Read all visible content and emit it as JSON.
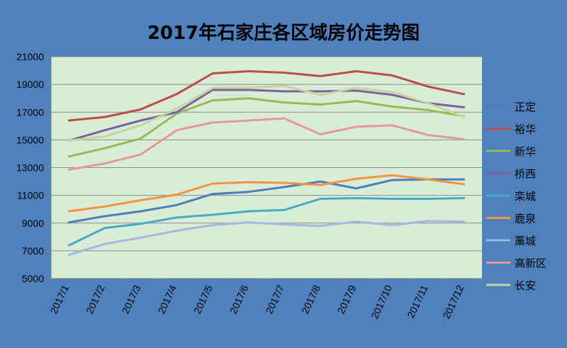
{
  "chart_data": {
    "type": "line",
    "title": "2017年石家庄各区域房价走势图",
    "xlabel": "",
    "ylabel": "",
    "categories": [
      "2017/1",
      "2017/2",
      "2017/3",
      "2017/4",
      "2017/5",
      "2017/6",
      "2017/7",
      "2017/8",
      "2017/9",
      "2017/10",
      "2017/11",
      "2017/12"
    ],
    "ylim": [
      5000,
      21000
    ],
    "yticks": [
      5000,
      7000,
      9000,
      11000,
      13000,
      15000,
      17000,
      19000,
      21000
    ],
    "grid": true,
    "legend_position": "right",
    "series": [
      {
        "name": "正定",
        "color": "#4a7ebb",
        "values": [
          9050,
          9500,
          9850,
          10300,
          11100,
          11250,
          11600,
          12000,
          11500,
          12100,
          12150,
          12150
        ]
      },
      {
        "name": "裕华",
        "color": "#be4b48",
        "values": [
          16400,
          16650,
          17200,
          18300,
          19800,
          19950,
          19850,
          19600,
          19950,
          19650,
          18850,
          18300
        ]
      },
      {
        "name": "新华",
        "color": "#98b954",
        "values": [
          13800,
          14400,
          15100,
          16900,
          17850,
          18000,
          17700,
          17550,
          17800,
          17400,
          17150,
          16700
        ]
      },
      {
        "name": "桥西",
        "color": "#7d60a0",
        "values": [
          14950,
          15700,
          16400,
          17000,
          18600,
          18600,
          18500,
          18500,
          18550,
          18250,
          17650,
          17350
        ]
      },
      {
        "name": "栾城",
        "color": "#46aac5",
        "values": [
          7400,
          8650,
          8950,
          9400,
          9600,
          9850,
          9950,
          10750,
          10800,
          10750,
          10750,
          10800
        ]
      },
      {
        "name": "鹿泉",
        "color": "#f69240",
        "values": [
          9850,
          10200,
          10650,
          11050,
          11850,
          11950,
          11900,
          11750,
          12200,
          12450,
          12150,
          11800
        ]
      },
      {
        "name": "藁城",
        "color": "#a6b7e0",
        "values": [
          6700,
          7500,
          7950,
          8450,
          8850,
          9050,
          8900,
          8800,
          9100,
          8850,
          9150,
          9100
        ]
      },
      {
        "name": "高新区",
        "color": "#e3999a",
        "values": [
          12850,
          13300,
          13950,
          15700,
          16250,
          16400,
          16550,
          15400,
          15950,
          16050,
          15350,
          15050
        ]
      },
      {
        "name": "长安",
        "color": "#c4d79b",
        "values": [
          14950,
          15250,
          16050,
          17250,
          18750,
          18750,
          18900,
          18250,
          18750,
          18450,
          17650,
          16650
        ]
      }
    ]
  }
}
